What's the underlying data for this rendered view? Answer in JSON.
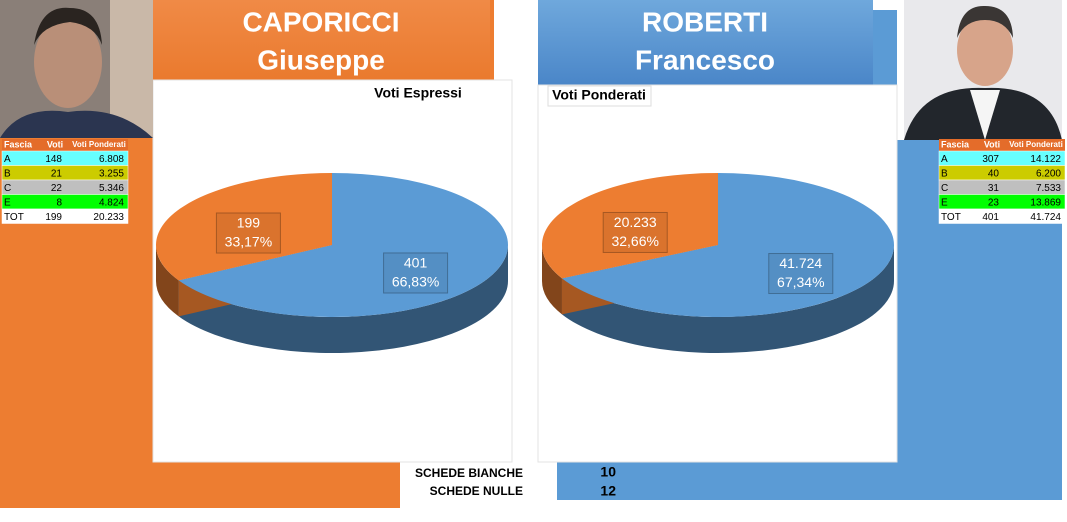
{
  "candidates": [
    {
      "surname": "CAPORICCI",
      "name": "Giuseppe"
    },
    {
      "surname": "ROBERTI",
      "name": "Francesco"
    }
  ],
  "chart_data": [
    {
      "type": "pie",
      "title": "Voti Espressi",
      "values": [
        401,
        199
      ],
      "value_labels": [
        "401",
        "199"
      ],
      "percents": [
        66.83,
        33.17
      ],
      "percent_labels": [
        "66,83%",
        "33,17%"
      ],
      "colors": [
        "#5b9bd5",
        "#ed7d31"
      ]
    },
    {
      "type": "pie",
      "title": "Voti Ponderati",
      "values": [
        41724,
        20233
      ],
      "value_labels": [
        "41.724",
        "20.233"
      ],
      "percents": [
        67.34,
        32.66
      ],
      "percent_labels": [
        "67,34%",
        "32,66%"
      ],
      "colors": [
        "#5b9bd5",
        "#ed7d31"
      ]
    }
  ],
  "tables": [
    {
      "header": [
        "Fascia",
        "Voti",
        "Voti Ponderati"
      ],
      "rows": [
        [
          "A",
          "148",
          "6.808"
        ],
        [
          "B",
          "21",
          "3.255"
        ],
        [
          "C",
          "22",
          "5.346"
        ],
        [
          "E",
          "8",
          "4.824"
        ],
        [
          "TOT",
          "199",
          "20.233"
        ]
      ],
      "row_colors": [
        "#66ffff",
        "#cccc00",
        "#bfbfbf",
        "#00ff00",
        "#ffffff"
      ]
    },
    {
      "header": [
        "Fascia",
        "Voti",
        "Voti Ponderati"
      ],
      "rows": [
        [
          "A",
          "307",
          "14.122"
        ],
        [
          "B",
          "40",
          "6.200"
        ],
        [
          "C",
          "31",
          "7.533"
        ],
        [
          "E",
          "23",
          "13.869"
        ],
        [
          "TOT",
          "401",
          "41.724"
        ]
      ],
      "row_colors": [
        "#66ffff",
        "#cccc00",
        "#bfbfbf",
        "#00ff00",
        "#ffffff"
      ]
    }
  ],
  "footer": [
    {
      "label": "SCHEDE BIANCHE",
      "value": "10"
    },
    {
      "label": "SCHEDE NULLE",
      "value": "12"
    }
  ]
}
